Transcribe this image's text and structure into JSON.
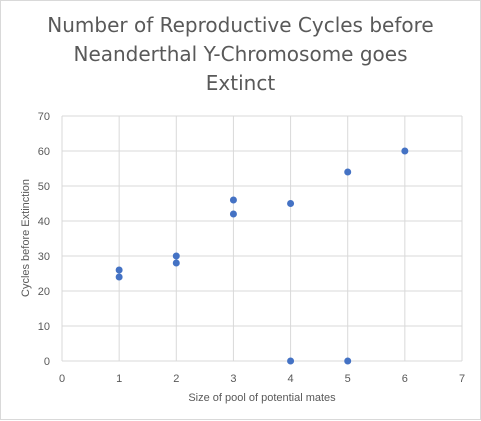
{
  "chart_data": {
    "type": "scatter",
    "title_lines": [
      "Number of Reproductive Cycles before",
      "Neanderthal Y-Chromosome goes",
      "Extinct"
    ],
    "xlabel": "Size of pool of potential mates",
    "ylabel": "Cycles before Extinction",
    "xlim": [
      0,
      7
    ],
    "ylim": [
      0,
      70
    ],
    "x_ticks": [
      "0",
      "1",
      "2",
      "3",
      "4",
      "5",
      "6",
      "7"
    ],
    "y_ticks": [
      "0",
      "10",
      "20",
      "30",
      "40",
      "50",
      "60",
      "70"
    ],
    "grid": true,
    "marker_color": "#4472c4",
    "points": [
      {
        "x": 1,
        "y": 26
      },
      {
        "x": 1,
        "y": 24
      },
      {
        "x": 2,
        "y": 30
      },
      {
        "x": 2,
        "y": 28
      },
      {
        "x": 3,
        "y": 46
      },
      {
        "x": 3,
        "y": 42
      },
      {
        "x": 4,
        "y": 45
      },
      {
        "x": 4,
        "y": 0
      },
      {
        "x": 5,
        "y": 54
      },
      {
        "x": 5,
        "y": 0
      },
      {
        "x": 6,
        "y": 60
      }
    ]
  }
}
